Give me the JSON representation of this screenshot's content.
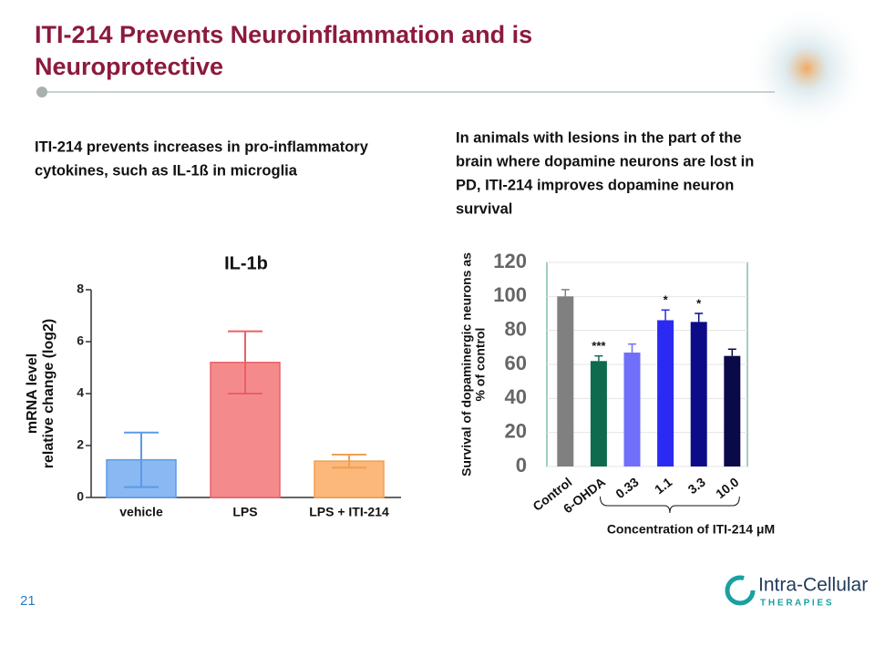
{
  "title": [
    "ITI-214 Prevents Neuroinflammation and is",
    "Neuroprotective"
  ],
  "left_text": [
    "ITI-214 prevents increases in pro-inflammatory",
    "cytokines, such as IL-1ß in microglia"
  ],
  "right_text": [
    "In animals with lesions in the part of the",
    "brain where dopamine neurons are lost in",
    "PD, ITI-214 improves dopamine neuron",
    "survival"
  ],
  "page_number": "21",
  "logo": {
    "name": "Intra-Cellular",
    "tagline": "T H E R A P I E S"
  },
  "chart_data": [
    {
      "type": "bar",
      "title": "IL-1b",
      "ylabel": [
        "mRNA level",
        "relative change (log2)"
      ],
      "categories": [
        "vehicle",
        "LPS",
        "LPS + ITI-214"
      ],
      "values": [
        1.45,
        5.2,
        1.4
      ],
      "errors": [
        1.05,
        1.2,
        0.25
      ],
      "error_style": "both",
      "colors": [
        "#8ab8f2",
        "#f58a8c",
        "#fbb87a"
      ],
      "edge_colors": [
        "#5a9ae8",
        "#e86068",
        "#f0a050"
      ],
      "ylim": [
        0,
        8
      ],
      "yticks": [
        0,
        2,
        4,
        6,
        8
      ],
      "grid": false
    },
    {
      "type": "bar",
      "ylabel": [
        "Survival of dopaminergic neurons as",
        "% of control"
      ],
      "xlabel": "Concentration of ITI-214 μM",
      "categories": [
        "Control",
        "6-OHDA",
        "0.33",
        "1.1",
        "3.3",
        "10.0"
      ],
      "values": [
        100,
        62,
        67,
        86,
        85,
        65
      ],
      "errors": [
        4,
        3,
        5,
        6,
        5,
        4
      ],
      "error_style": "up",
      "annotations": [
        null,
        "***",
        null,
        "*",
        "*",
        null
      ],
      "colors": [
        "#808080",
        "#0f6a4e",
        "#6f6ffa",
        "#2a2af2",
        "#0c0c88",
        "#0a0a48"
      ],
      "ylim": [
        0,
        120
      ],
      "yticks": [
        0,
        20,
        40,
        60,
        80,
        100,
        120
      ],
      "grid": true
    }
  ]
}
